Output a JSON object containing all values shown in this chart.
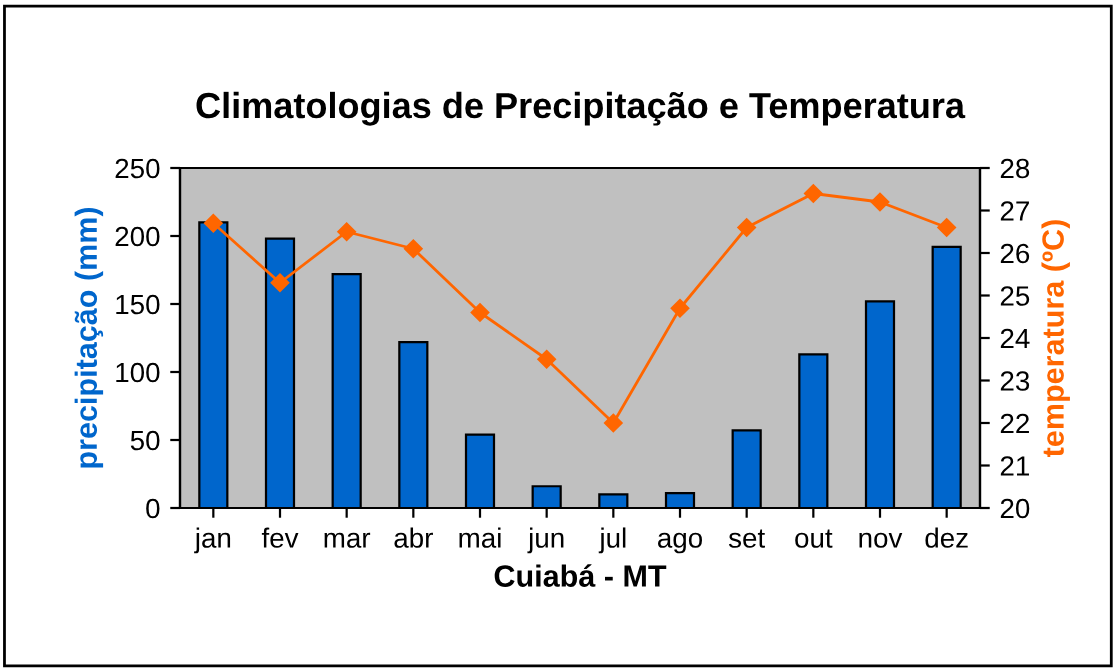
{
  "chart_data": {
    "type": "bar",
    "title": "Climatologias de Precipitação e Temperatura",
    "xlabel": "Cuiabá - MT",
    "ylabel": "precipitação (mm)",
    "y2label": "temperatura (ºC)",
    "categories": [
      "jan",
      "fev",
      "mar",
      "abr",
      "mai",
      "jun",
      "jul",
      "ago",
      "set",
      "out",
      "nov",
      "dez"
    ],
    "series": [
      {
        "color": "#0066cc",
        "values": [
          210,
          198,
          172,
          122,
          54,
          16,
          10,
          11,
          57,
          113,
          152,
          192
        ]
      },
      {
        "type": "line",
        "axis": "y2",
        "color": "#ff6600",
        "marker": "diamond",
        "values": [
          26.7,
          25.3,
          26.5,
          26.1,
          24.6,
          23.5,
          22.0,
          24.7,
          26.6,
          27.4,
          27.2,
          26.6
        ]
      }
    ],
    "ylim": [
      0,
      250
    ],
    "yticks": [
      0,
      50,
      100,
      150,
      200,
      250
    ],
    "y2lim": [
      20,
      28
    ],
    "y2ticks": [
      20,
      21,
      22,
      23,
      24,
      25,
      26,
      27,
      28
    ],
    "grid": false,
    "legend": false
  }
}
